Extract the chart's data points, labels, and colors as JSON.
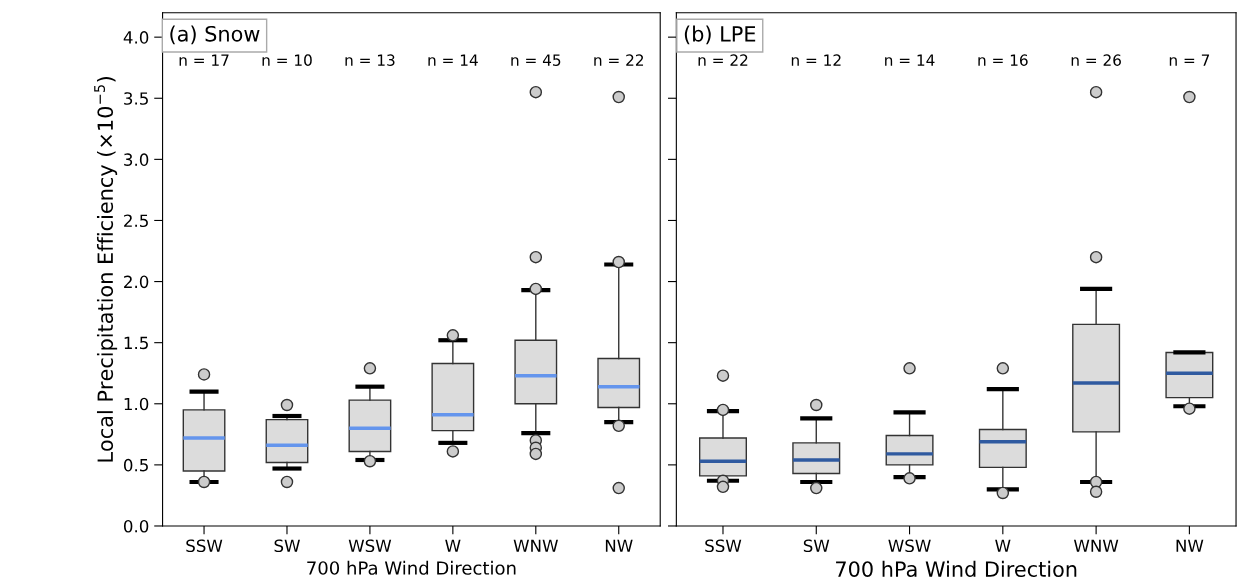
{
  "chart_data": [
    {
      "type": "box",
      "title": "(a) Snow",
      "xlabel": "700 hPa Wind Direction",
      "ylabel": "Local Precipitation Efficiency (×10$^{−5}$)",
      "categories": [
        "SSW",
        "SW",
        "WSW",
        "W",
        "WNW",
        "NW"
      ],
      "ylim": [
        0,
        4.2
      ],
      "yticks": [
        {
          "value": 0,
          "label": "0.0"
        },
        {
          "value": 0.5,
          "label": "0.5"
        },
        {
          "value": 1,
          "label": "1.0"
        },
        {
          "value": 1.5,
          "label": "1.5"
        },
        {
          "value": 2,
          "label": "2.0"
        },
        {
          "value": 2.5,
          "label": "2.5"
        },
        {
          "value": 3,
          "label": "3.0"
        },
        {
          "value": 3.5,
          "label": "3.5"
        },
        {
          "value": 4,
          "label": "4.0"
        }
      ],
      "grid": false,
      "annotations": [
        "n = 17",
        "n = 10",
        "n = 13",
        "n = 14",
        "n = 45",
        "n = 22"
      ],
      "series": [
        {
          "color": "#dcdcdc",
          "boxes": [
            {
              "low": 0.36,
              "q1": 0.45,
              "median": 0.72,
              "q3": 0.95,
              "high": 1.1,
              "outliers": [
                1.24,
                0.36
              ]
            },
            {
              "low": 0.47,
              "q1": 0.52,
              "median": 0.66,
              "q3": 0.87,
              "high": 0.9,
              "outliers": [
                0.99,
                0.36
              ]
            },
            {
              "low": 0.54,
              "q1": 0.61,
              "median": 0.8,
              "q3": 1.03,
              "high": 1.14,
              "outliers": [
                1.29,
                0.53
              ]
            },
            {
              "low": 0.68,
              "q1": 0.78,
              "median": 0.91,
              "q3": 1.33,
              "high": 1.52,
              "outliers": [
                1.56,
                0.61
              ]
            },
            {
              "low": 0.76,
              "q1": 1.0,
              "median": 1.23,
              "q3": 1.52,
              "high": 1.93,
              "outliers": [
                3.55,
                2.2,
                1.94,
                0.7,
                0.64,
                0.59
              ]
            },
            {
              "low": 0.85,
              "q1": 0.97,
              "median": 1.14,
              "q3": 1.37,
              "high": 2.14,
              "outliers": [
                3.51,
                2.16,
                0.82,
                0.31
              ]
            }
          ]
        }
      ]
    },
    {
      "type": "box",
      "title": "(b) LPE",
      "xlabel": "700 hPa Wind Direction",
      "categories": [
        "SSW",
        "SW",
        "WSW",
        "W",
        "WNW",
        "NW"
      ],
      "ylim": [
        0,
        4.2
      ],
      "yticks": [
        {
          "value": 0,
          "label": null
        },
        {
          "value": 0.5,
          "label": null
        },
        {
          "value": 1,
          "label": null
        },
        {
          "value": 1.5,
          "label": null
        },
        {
          "value": 2,
          "label": null
        },
        {
          "value": 2.5,
          "label": null
        },
        {
          "value": 3,
          "label": null
        },
        {
          "value": 3.5,
          "label": null
        },
        {
          "value": 4,
          "label": null
        }
      ],
      "tick_labels": "x",
      "grid": false,
      "annotations": [
        "n = 22",
        "n = 12",
        "n = 14",
        "n = 16",
        "n = 26",
        "n = 7"
      ],
      "series": [
        {
          "color": "#dcdcdc",
          "boxes": [
            {
              "low": 0.37,
              "q1": 0.41,
              "median": 0.53,
              "q3": 0.72,
              "high": 0.94,
              "outliers": [
                1.23,
                0.95,
                0.37,
                0.32
              ]
            },
            {
              "low": 0.36,
              "q1": 0.43,
              "median": 0.54,
              "q3": 0.68,
              "high": 0.88,
              "outliers": [
                0.99,
                0.31
              ]
            },
            {
              "low": 0.4,
              "q1": 0.5,
              "median": 0.59,
              "q3": 0.74,
              "high": 0.93,
              "outliers": [
                1.29,
                0.39
              ]
            },
            {
              "low": 0.3,
              "q1": 0.48,
              "median": 0.69,
              "q3": 0.79,
              "high": 1.12,
              "outliers": [
                1.29,
                0.27
              ]
            },
            {
              "low": 0.36,
              "q1": 0.77,
              "median": 1.17,
              "q3": 1.65,
              "high": 1.94,
              "outliers": [
                3.55,
                2.2,
                0.36,
                0.28
              ]
            },
            {
              "low": 0.98,
              "q1": 1.05,
              "median": 1.25,
              "q3": 1.42,
              "high": 1.42,
              "outliers": [
                3.51,
                0.96
              ]
            }
          ]
        }
      ]
    }
  ]
}
